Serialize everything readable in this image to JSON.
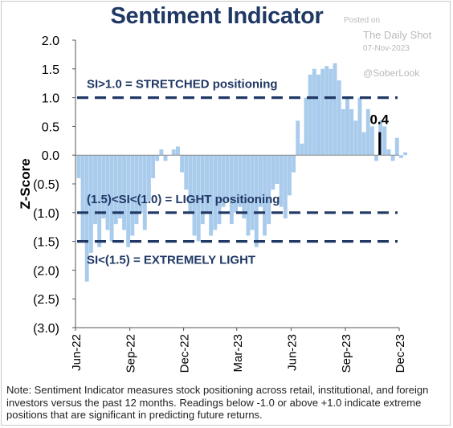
{
  "title": "Sentiment Indicator",
  "watermark": {
    "posted_on": "Posted on",
    "source": "The Daily Shot",
    "date": "07-Nov-2023",
    "handle": "@SoberLook"
  },
  "note": "Note: Sentiment Indicator measures stock positioning across retail, institutional, and foreign investors versus the past 12 months. Readings below -1.0 or above +1.0 indicate extreme positions that are significant in predicting future returns.",
  "colors": {
    "bars": "#a9cbec",
    "reference_lines": "#1f3864",
    "latest_bar": "#000000",
    "title": "#1f3864"
  },
  "chart_data": {
    "type": "bar",
    "title": "Sentiment Indicator",
    "ylabel": "Z-Score",
    "xlabel": "",
    "ylim": [
      -3.0,
      2.0
    ],
    "y_ticks": [
      2.0,
      1.5,
      1.0,
      0.5,
      0.0,
      -0.5,
      -1.0,
      -1.5,
      -2.0,
      -2.5,
      -3.0
    ],
    "y_tick_labels": [
      "2.0",
      "1.5",
      "1.0",
      "0.5",
      "0.0",
      "(0.5)",
      "(1.0)",
      "(1.5)",
      "(2.0)",
      "(2.5)",
      "(3.0)"
    ],
    "x_tick_labels": [
      "Jun-22",
      "Sep-22",
      "Dec-22",
      "Mar-23",
      "Jun-23",
      "Sep-23",
      "Dec-23"
    ],
    "x_range": [
      "2022-06-01",
      "2023-12-01"
    ],
    "week_start": "2022-06-03",
    "series": [
      {
        "values": [
          -0.4,
          -1.5,
          -2.2,
          -1.7,
          -1.2,
          -1.6,
          -1.1,
          -1.3,
          -1.5,
          -1.2,
          -1.1,
          -1.3,
          -1.6,
          -1.4,
          -1.2,
          -1.0,
          -1.3,
          -0.8,
          -0.4,
          -0.1,
          0.1,
          -0.1,
          0.0,
          0.1,
          0.15,
          -0.3,
          -0.6,
          -1.0,
          -1.4,
          -1.5,
          -1.2,
          -1.0,
          -1.4,
          -1.3,
          -1.2,
          -0.9,
          -0.8,
          -1.2,
          -1.0,
          -0.9,
          -1.1,
          -1.4,
          -1.3,
          -1.6,
          -0.9,
          -1.4,
          -1.2,
          -0.6,
          -0.5,
          -0.9,
          -1.1,
          -0.7,
          -0.3,
          0.6,
          0.2,
          1.0,
          1.4,
          1.5,
          1.4,
          1.5,
          1.55,
          1.5,
          1.6,
          1.3,
          0.8,
          1.0,
          0.8,
          0.6,
          1.0,
          0.4,
          0.8,
          0.5,
          -0.1,
          0.6,
          0.5,
          0.1,
          -0.1,
          0.3,
          -0.05,
          0.05
        ]
      }
    ],
    "latest": {
      "date": "2023-10-27",
      "value": 0.4,
      "label": "0.4"
    },
    "reference_lines": [
      {
        "y": 1.0,
        "label": "SI>1.0 = STRETCHED positioning"
      },
      {
        "y": -1.0,
        "label": "(1.5)<SI<(1.0) = LIGHT positioning"
      },
      {
        "y": -1.5,
        "label": "SI<(1.5) = EXTREMELY LIGHT"
      }
    ],
    "grid": false
  }
}
